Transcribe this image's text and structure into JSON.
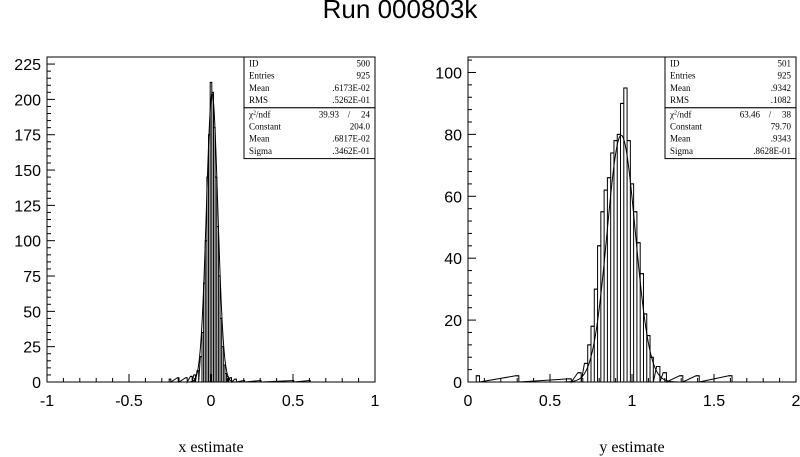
{
  "title": "Run 000803k",
  "chart_data": [
    {
      "type": "histogram",
      "xlabel": "x estimate",
      "ylabel": "",
      "xlim": [
        -1,
        1
      ],
      "ylim": [
        0,
        230
      ],
      "x_ticks": [
        "-1",
        "-0.5",
        "0",
        "0.5",
        "1"
      ],
      "y_ticks": [
        "0",
        "25",
        "50",
        "75",
        "100",
        "125",
        "150",
        "175",
        "200",
        "225"
      ],
      "stats": [
        {
          "label": "ID",
          "value": "500"
        },
        {
          "label": "Entries",
          "value": "925"
        },
        {
          "label": "Mean",
          "value": ".6173E-02"
        },
        {
          "label": "RMS",
          "value": ".5262E-01"
        }
      ],
      "fit": {
        "chi2_value": "39.93",
        "ndf": "24",
        "params": [
          {
            "label": "Constant",
            "value": "204.0"
          },
          {
            "label": "Mean",
            "value": ".6817E-02"
          },
          {
            "label": "Sigma",
            "value": ".3462E-01"
          }
        ]
      },
      "bins_x": [
        -0.25,
        -0.2,
        -0.15,
        -0.12,
        -0.1,
        -0.08,
        -0.06,
        -0.05,
        -0.04,
        -0.03,
        -0.02,
        -0.01,
        0.0,
        0.01,
        0.02,
        0.03,
        0.04,
        0.05,
        0.06,
        0.07,
        0.08,
        0.09,
        0.1,
        0.12,
        0.15,
        0.2,
        0.3,
        0.5,
        0.6
      ],
      "bins_y": [
        2,
        3,
        3,
        4,
        5,
        8,
        18,
        35,
        70,
        100,
        145,
        175,
        212,
        205,
        180,
        145,
        110,
        75,
        45,
        25,
        12,
        6,
        4,
        3,
        2,
        1,
        1,
        1,
        1
      ],
      "bin_width": 0.01,
      "gauss": {
        "constant": 204.0,
        "mean": 0.006817,
        "sigma": 0.03462
      }
    },
    {
      "type": "histogram",
      "xlabel": "y estimate",
      "ylabel": "",
      "xlim": [
        0,
        2
      ],
      "ylim": [
        0,
        105
      ],
      "x_ticks": [
        "0",
        "0.5",
        "1",
        "1.5",
        "2"
      ],
      "y_ticks": [
        "0",
        "20",
        "40",
        "60",
        "80",
        "100"
      ],
      "stats": [
        {
          "label": "ID",
          "value": "501"
        },
        {
          "label": "Entries",
          "value": "925"
        },
        {
          "label": "Mean",
          "value": ".9342"
        },
        {
          "label": "RMS",
          "value": ".1082"
        }
      ],
      "fit": {
        "chi2_value": "63.46",
        "ndf": "38",
        "params": [
          {
            "label": "Constant",
            "value": "79.70"
          },
          {
            "label": "Mean",
            "value": ".9343"
          },
          {
            "label": "Sigma",
            "value": ".8628E-01"
          }
        ]
      },
      "bins_x": [
        0.06,
        0.3,
        0.62,
        0.68,
        0.72,
        0.74,
        0.76,
        0.78,
        0.8,
        0.82,
        0.84,
        0.86,
        0.88,
        0.9,
        0.92,
        0.94,
        0.96,
        0.98,
        1.0,
        1.02,
        1.04,
        1.06,
        1.08,
        1.1,
        1.12,
        1.16,
        1.2,
        1.3,
        1.4,
        1.6
      ],
      "bins_y": [
        2,
        2,
        1,
        3,
        6,
        12,
        18,
        30,
        44,
        55,
        62,
        66,
        74,
        78,
        80,
        90,
        95,
        78,
        64,
        55,
        45,
        35,
        22,
        15,
        8,
        5,
        3,
        2,
        2,
        2
      ],
      "bin_width": 0.02,
      "gauss": {
        "constant": 79.7,
        "mean": 0.9343,
        "sigma": 0.08628
      }
    }
  ]
}
